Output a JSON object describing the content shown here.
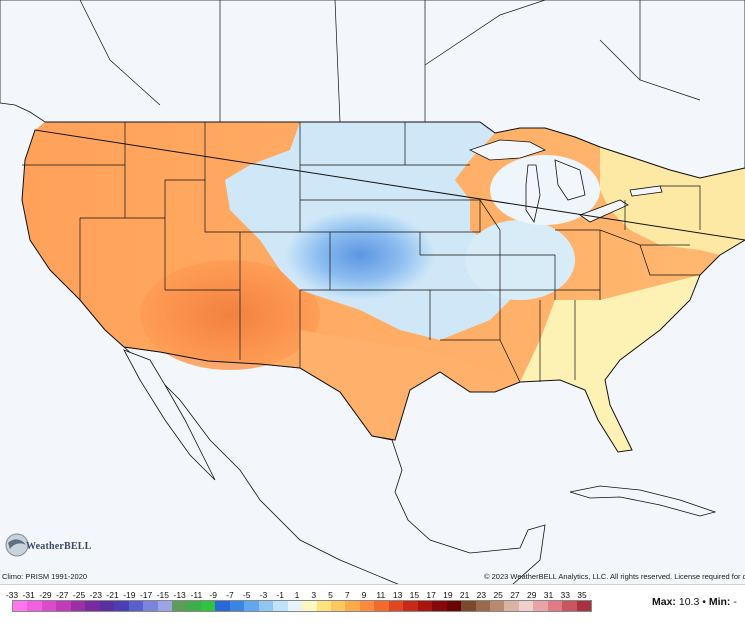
{
  "map": {
    "water_color": "#f3f6fb",
    "foreign_land_color": "#f3f6fb",
    "outline_color": "#111111"
  },
  "attribution": {
    "climo": "Climo: PRISM 1991-2020",
    "copyright": "© 2023 WeatherBELL Analytics, LLC. All rights reserved. License required for c"
  },
  "logo": {
    "text": "WeatherBELL",
    "icon": "globe-swirl-icon"
  },
  "legend": {
    "ticks": [
      "-33",
      "-31",
      "-29",
      "-27",
      "-25",
      "-23",
      "-21",
      "-19",
      "-17",
      "-15",
      "-13",
      "-11",
      "-9",
      "-7",
      "-5",
      "-3",
      "-1",
      "1",
      "3",
      "5",
      "7",
      "9",
      "11",
      "13",
      "15",
      "17",
      "19",
      "21",
      "23",
      "25",
      "27",
      "29",
      "31",
      "33",
      "35"
    ],
    "colors": [
      "#ff77ee",
      "#f060e0",
      "#d94ccc",
      "#c13ab8",
      "#9c2ea8",
      "#7a2aa0",
      "#5a2f9e",
      "#4a3fb5",
      "#5b5fcc",
      "#7a84dd",
      "#9aa4e6",
      "#5e9c5a",
      "#3fae4a",
      "#2fc340",
      "#2868d8",
      "#3a86e3",
      "#62a6ef",
      "#8fc6f4",
      "#bfe3f8",
      "#e6f4fb",
      "#fff7c0",
      "#ffe37a",
      "#ffc760",
      "#ffa94d",
      "#ff8a3d",
      "#f26a2d",
      "#e0461f",
      "#c92a18",
      "#a8140e",
      "#860808",
      "#6a0404",
      "#7b4a2c",
      "#9a6a4a",
      "#b98a70",
      "#d9b3a4",
      "#f0d0cc",
      "#e9a3a7",
      "#dd7b86",
      "#c85560",
      "#a83240"
    ],
    "max_label": "Max:",
    "max_value": "10.3",
    "separator": "•",
    "min_label": "Min:",
    "min_value": "-"
  }
}
